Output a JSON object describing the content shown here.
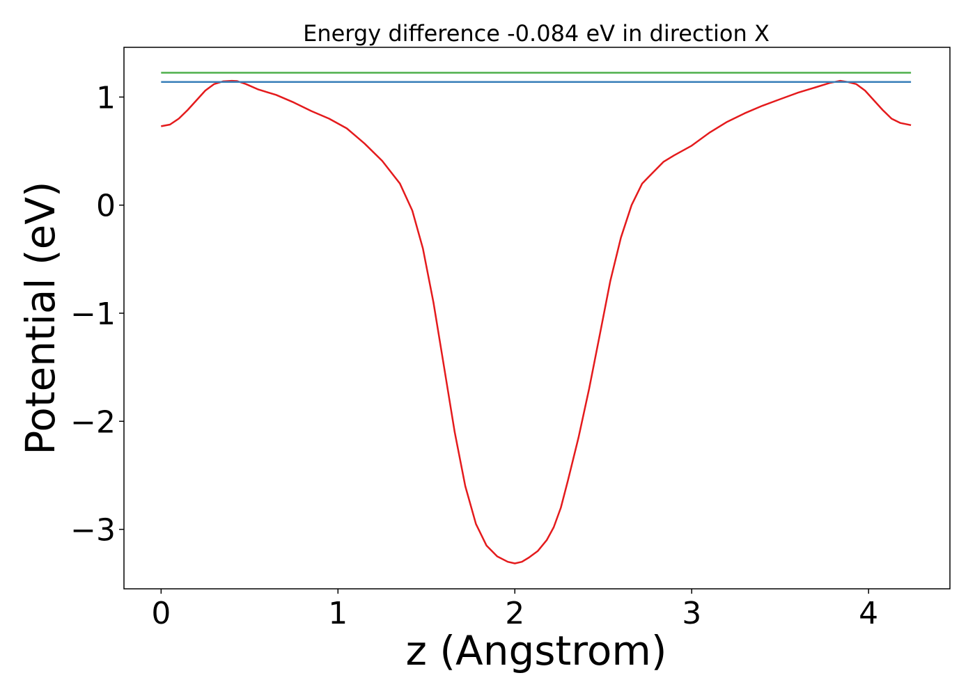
{
  "chart_data": {
    "type": "line",
    "title": "Energy difference -0.084 eV in direction X",
    "xlabel": "z (Angstrom)",
    "ylabel": "Potential (eV)",
    "xlim": [
      -0.21,
      4.46
    ],
    "ylim": [
      -3.55,
      1.46
    ],
    "xticks": [
      0,
      1,
      2,
      3,
      4
    ],
    "xtick_labels": [
      "0",
      "1",
      "2",
      "3",
      "4"
    ],
    "yticks": [
      -3,
      -2,
      -1,
      0,
      1
    ],
    "ytick_labels": [
      "−3",
      "−2",
      "−1",
      "0",
      "1"
    ],
    "grid": false,
    "series": [
      {
        "color": "#e41a1c",
        "x": [
          0.0,
          0.05,
          0.1,
          0.15,
          0.2,
          0.25,
          0.3,
          0.35,
          0.4,
          0.43,
          0.48,
          0.55,
          0.65,
          0.75,
          0.85,
          0.95,
          1.05,
          1.15,
          1.25,
          1.35,
          1.42,
          1.48,
          1.54,
          1.6,
          1.66,
          1.72,
          1.78,
          1.84,
          1.9,
          1.96,
          2.0,
          2.04,
          2.08,
          2.13,
          2.18,
          2.22,
          2.26,
          2.3,
          2.36,
          2.42,
          2.48,
          2.54,
          2.6,
          2.66,
          2.72,
          2.78,
          2.84,
          2.9,
          3.0,
          3.1,
          3.2,
          3.3,
          3.4,
          3.5,
          3.6,
          3.7,
          3.78,
          3.84,
          3.88,
          3.93,
          3.98,
          4.03,
          4.08,
          4.13,
          4.18,
          4.24
        ],
        "y": [
          0.73,
          0.745,
          0.8,
          0.88,
          0.97,
          1.06,
          1.12,
          1.145,
          1.15,
          1.148,
          1.12,
          1.07,
          1.02,
          0.95,
          0.87,
          0.8,
          0.71,
          0.57,
          0.41,
          0.2,
          -0.05,
          -0.4,
          -0.9,
          -1.5,
          -2.1,
          -2.6,
          -2.95,
          -3.15,
          -3.25,
          -3.3,
          -3.315,
          -3.3,
          -3.26,
          -3.2,
          -3.1,
          -2.98,
          -2.8,
          -2.55,
          -2.15,
          -1.7,
          -1.2,
          -0.7,
          -0.3,
          0.0,
          0.2,
          0.3,
          0.4,
          0.46,
          0.55,
          0.67,
          0.77,
          0.85,
          0.92,
          0.98,
          1.04,
          1.09,
          1.13,
          1.15,
          1.14,
          1.12,
          1.06,
          0.97,
          0.88,
          0.8,
          0.76,
          0.74
        ]
      },
      {
        "color": "#4daf4a",
        "x": [
          0.0,
          4.24
        ],
        "y": [
          1.225,
          1.225
        ]
      },
      {
        "color": "#377eb8",
        "x": [
          0.0,
          4.24
        ],
        "y": [
          1.14,
          1.14
        ]
      }
    ]
  }
}
